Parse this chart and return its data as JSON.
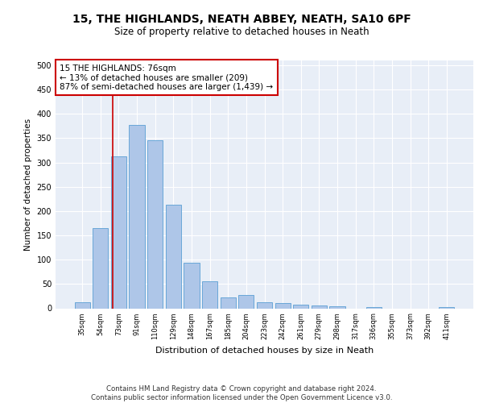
{
  "title1": "15, THE HIGHLANDS, NEATH ABBEY, NEATH, SA10 6PF",
  "title2": "Size of property relative to detached houses in Neath",
  "xlabel": "Distribution of detached houses by size in Neath",
  "ylabel": "Number of detached properties",
  "categories": [
    "35sqm",
    "54sqm",
    "73sqm",
    "91sqm",
    "110sqm",
    "129sqm",
    "148sqm",
    "167sqm",
    "185sqm",
    "204sqm",
    "223sqm",
    "242sqm",
    "261sqm",
    "279sqm",
    "298sqm",
    "317sqm",
    "336sqm",
    "355sqm",
    "373sqm",
    "392sqm",
    "411sqm"
  ],
  "values": [
    13,
    165,
    313,
    378,
    345,
    213,
    93,
    55,
    23,
    28,
    13,
    10,
    8,
    6,
    4,
    0,
    3,
    0,
    0,
    0,
    3
  ],
  "bar_color": "#aec6e8",
  "bar_edge_color": "#5a9fd4",
  "vline_color": "#cc0000",
  "vline_pos": 1.65,
  "annotation_text": "15 THE HIGHLANDS: 76sqm\n← 13% of detached houses are smaller (209)\n87% of semi-detached houses are larger (1,439) →",
  "annotation_box_color": "#ffffff",
  "annotation_box_edge_color": "#cc0000",
  "ylim": [
    0,
    510
  ],
  "yticks": [
    0,
    50,
    100,
    150,
    200,
    250,
    300,
    350,
    400,
    450,
    500
  ],
  "footer_text": "Contains HM Land Registry data © Crown copyright and database right 2024.\nContains public sector information licensed under the Open Government Licence v3.0.",
  "background_color": "#e8eef7",
  "grid_color": "#ffffff",
  "fig_bg": "#ffffff"
}
